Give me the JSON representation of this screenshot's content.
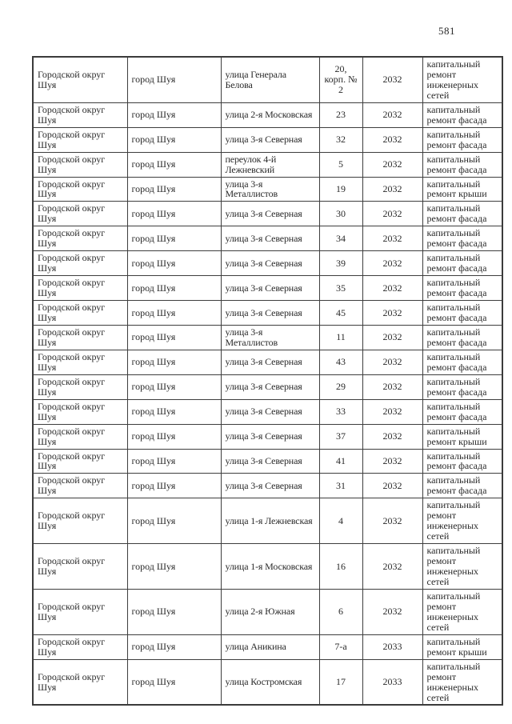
{
  "page": {
    "number": "581"
  },
  "table": {
    "columns": [
      "district",
      "city",
      "street",
      "house",
      "year",
      "work"
    ],
    "work_types": {
      "facade": "капитальный ремонт фасада",
      "roof": "капитальный ремонт крыши",
      "networks": "капитальный ремонт инженерных сетей"
    },
    "rows": [
      {
        "district": "Городской округ Шуя",
        "city": "город Шуя",
        "street": "улица Генерала Белова",
        "house": "20, корп. № 2",
        "year": "2032",
        "work": "капитальный ремонт инженерных сетей"
      },
      {
        "district": "Городской округ Шуя",
        "city": "город Шуя",
        "street": "улица 2-я Московская",
        "house": "23",
        "year": "2032",
        "work": "капитальный ремонт фасада"
      },
      {
        "district": "Городской округ Шуя",
        "city": "город Шуя",
        "street": "улица 3-я Северная",
        "house": "32",
        "year": "2032",
        "work": "капитальный ремонт фасада"
      },
      {
        "district": "Городской округ Шуя",
        "city": "город Шуя",
        "street": "переулок 4-й Лежневский",
        "house": "5",
        "year": "2032",
        "work": "капитальный ремонт фасада"
      },
      {
        "district": "Городской округ Шуя",
        "city": "город Шуя",
        "street": "улица 3-я Металлистов",
        "house": "19",
        "year": "2032",
        "work": "капитальный ремонт крыши"
      },
      {
        "district": "Городской округ Шуя",
        "city": "город Шуя",
        "street": "улица 3-я Северная",
        "house": "30",
        "year": "2032",
        "work": "капитальный ремонт фасада"
      },
      {
        "district": "Городской округ Шуя",
        "city": "город Шуя",
        "street": "улица 3-я Северная",
        "house": "34",
        "year": "2032",
        "work": "капитальный ремонт фасада"
      },
      {
        "district": "Городской округ Шуя",
        "city": "город Шуя",
        "street": "улица 3-я Северная",
        "house": "39",
        "year": "2032",
        "work": "капитальный ремонт фасада"
      },
      {
        "district": "Городской округ Шуя",
        "city": "город Шуя",
        "street": "улица 3-я Северная",
        "house": "35",
        "year": "2032",
        "work": "капитальный ремонт фасада"
      },
      {
        "district": "Городской округ Шуя",
        "city": "город Шуя",
        "street": "улица 3-я Северная",
        "house": "45",
        "year": "2032",
        "work": "капитальный ремонт фасада"
      },
      {
        "district": "Городской округ Шуя",
        "city": "город Шуя",
        "street": "улица 3-я Металлистов",
        "house": "11",
        "year": "2032",
        "work": "капитальный ремонт фасада"
      },
      {
        "district": "Городской округ Шуя",
        "city": "город Шуя",
        "street": "улица 3-я Северная",
        "house": "43",
        "year": "2032",
        "work": "капитальный ремонт фасада"
      },
      {
        "district": "Городской округ Шуя",
        "city": "город Шуя",
        "street": "улица 3-я Северная",
        "house": "29",
        "year": "2032",
        "work": "капитальный ремонт фасада"
      },
      {
        "district": "Городской округ Шуя",
        "city": "город Шуя",
        "street": "улица 3-я Северная",
        "house": "33",
        "year": "2032",
        "work": "капитальный ремонт фасада"
      },
      {
        "district": "Городской округ Шуя",
        "city": "город Шуя",
        "street": "улица 3-я Северная",
        "house": "37",
        "year": "2032",
        "work": "капитальный ремонт крыши"
      },
      {
        "district": "Городской округ Шуя",
        "city": "город Шуя",
        "street": "улица 3-я Северная",
        "house": "41",
        "year": "2032",
        "work": "капитальный ремонт фасада"
      },
      {
        "district": "Городской округ Шуя",
        "city": "город Шуя",
        "street": "улица 3-я Северная",
        "house": "31",
        "year": "2032",
        "work": "капитальный ремонт фасада"
      },
      {
        "district": "Городской округ Шуя",
        "city": "город Шуя",
        "street": "улица 1-я Лежневская",
        "house": "4",
        "year": "2032",
        "work": "капитальный ремонт инженерных сетей"
      },
      {
        "district": "Городской округ Шуя",
        "city": "город Шуя",
        "street": "улица 1-я Московская",
        "house": "16",
        "year": "2032",
        "work": "капитальный ремонт инженерных сетей"
      },
      {
        "district": "Городской округ Шуя",
        "city": "город Шуя",
        "street": "улица 2-я Южная",
        "house": "6",
        "year": "2032",
        "work": "капитальный ремонт инженерных сетей"
      },
      {
        "district": "Городской округ Шуя",
        "city": "город Шуя",
        "street": "улица Аникина",
        "house": "7-а",
        "year": "2033",
        "work": "капитальный ремонт крыши"
      },
      {
        "district": "Городской округ Шуя",
        "city": "город Шуя",
        "street": "улица Костромская",
        "house": "17",
        "year": "2033",
        "work": "капитальный ремонт инженерных сетей"
      }
    ]
  }
}
